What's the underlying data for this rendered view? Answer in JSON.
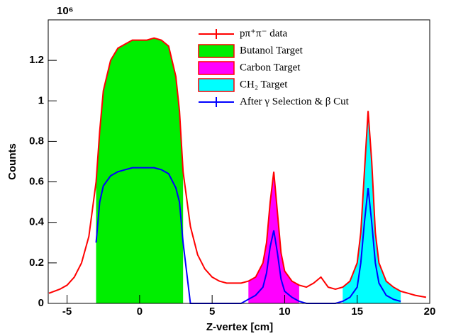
{
  "chart_data": {
    "type": "line",
    "y_label": "Counts",
    "x_label": "Z-vertex [cm]",
    "y_exponent": "10⁶",
    "xlim": [
      -6.3,
      20
    ],
    "ylim": [
      0,
      1.4
    ],
    "xticks": [
      -5,
      0,
      5,
      10,
      15,
      20
    ],
    "yticks": [
      0,
      0.2,
      0.4,
      0.6,
      0.8,
      1,
      1.2
    ],
    "x": [
      -6.25,
      -5.5,
      -5,
      -4.5,
      -4,
      -3.5,
      -3,
      -2.75,
      -2.5,
      -2,
      -1.5,
      -1,
      -0.5,
      0,
      0.5,
      1,
      1.5,
      2,
      2.5,
      2.75,
      3,
      3.5,
      4,
      4.5,
      5,
      5.5,
      6,
      6.5,
      7,
      7.5,
      8,
      8.5,
      8.75,
      9,
      9.25,
      9.5,
      9.75,
      10,
      10.5,
      11,
      11.5,
      12,
      12.5,
      13,
      13.5,
      14,
      14.5,
      15,
      15.25,
      15.5,
      15.75,
      16,
      16.25,
      16.5,
      17,
      17.5,
      18,
      18.5,
      19,
      19.75
    ],
    "series": [
      {
        "name": "Butanol Target",
        "kind": "area",
        "color": "#00ee00",
        "values": [
          null,
          null,
          null,
          null,
          null,
          null,
          0.6,
          0.85,
          1.05,
          1.2,
          1.26,
          1.28,
          1.3,
          1.3,
          1.3,
          1.31,
          1.3,
          1.27,
          1.12,
          0.95,
          0.65,
          null,
          null,
          null,
          null,
          null,
          null,
          null,
          null,
          null,
          null,
          null,
          null,
          null,
          null,
          null,
          null,
          null,
          null,
          null,
          null,
          null,
          null,
          null,
          null,
          null,
          null,
          null,
          null,
          null,
          null,
          null,
          null,
          null,
          null,
          null,
          null,
          null,
          null,
          null
        ]
      },
      {
        "name": "Carbon Target",
        "kind": "area",
        "color": "#ff00ff",
        "values": [
          null,
          null,
          null,
          null,
          null,
          null,
          null,
          null,
          null,
          null,
          null,
          null,
          null,
          null,
          null,
          null,
          null,
          null,
          null,
          null,
          null,
          null,
          null,
          null,
          null,
          null,
          null,
          null,
          null,
          0.11,
          0.13,
          0.2,
          0.3,
          0.5,
          0.65,
          0.45,
          0.25,
          0.16,
          0.11,
          0.09,
          null,
          null,
          null,
          null,
          null,
          null,
          null,
          null,
          null,
          null,
          null,
          null,
          null,
          null,
          null,
          null,
          null,
          null,
          null,
          null
        ]
      },
      {
        "name": "CH₂ Target",
        "kind": "area",
        "color": "#00ffff",
        "values": [
          null,
          null,
          null,
          null,
          null,
          null,
          null,
          null,
          null,
          null,
          null,
          null,
          null,
          null,
          null,
          null,
          null,
          null,
          null,
          null,
          null,
          null,
          null,
          null,
          null,
          null,
          null,
          null,
          null,
          null,
          null,
          null,
          null,
          null,
          null,
          null,
          null,
          null,
          null,
          null,
          null,
          null,
          null,
          null,
          null,
          0.08,
          0.11,
          0.2,
          0.35,
          0.65,
          0.95,
          0.7,
          0.35,
          0.2,
          0.11,
          0.08,
          0.06,
          null,
          null,
          null
        ]
      },
      {
        "name": "pπ⁺π⁻ data",
        "kind": "line",
        "color": "#ff0000",
        "values": [
          0.05,
          0.07,
          0.09,
          0.13,
          0.2,
          0.33,
          0.6,
          0.85,
          1.05,
          1.2,
          1.26,
          1.28,
          1.3,
          1.3,
          1.3,
          1.31,
          1.3,
          1.27,
          1.12,
          0.95,
          0.65,
          0.38,
          0.24,
          0.17,
          0.13,
          0.11,
          0.1,
          0.1,
          0.1,
          0.11,
          0.13,
          0.2,
          0.3,
          0.5,
          0.65,
          0.45,
          0.25,
          0.16,
          0.11,
          0.09,
          0.08,
          0.1,
          0.13,
          0.08,
          0.07,
          0.08,
          0.11,
          0.2,
          0.35,
          0.65,
          0.95,
          0.7,
          0.35,
          0.2,
          0.11,
          0.08,
          0.06,
          0.05,
          0.04,
          0.03
        ]
      },
      {
        "name": "After γ Selection & β Cut",
        "kind": "line",
        "color": "#0000ff",
        "values": [
          null,
          null,
          null,
          null,
          null,
          null,
          0.3,
          0.5,
          0.58,
          0.63,
          0.65,
          0.66,
          0.67,
          0.67,
          0.67,
          0.67,
          0.66,
          0.64,
          0.57,
          0.5,
          0.3,
          0,
          0,
          0,
          0,
          0,
          0,
          0,
          0,
          0.02,
          0.04,
          0.08,
          0.15,
          0.28,
          0.36,
          0.25,
          0.12,
          0.06,
          0.03,
          0.01,
          0,
          0,
          0,
          0,
          0,
          0.01,
          0.03,
          0.08,
          0.2,
          0.4,
          0.57,
          0.4,
          0.2,
          0.1,
          0.04,
          0.02,
          0.01,
          null,
          null,
          null
        ]
      }
    ],
    "legend_order": [
      3,
      0,
      1,
      2,
      4
    ]
  }
}
